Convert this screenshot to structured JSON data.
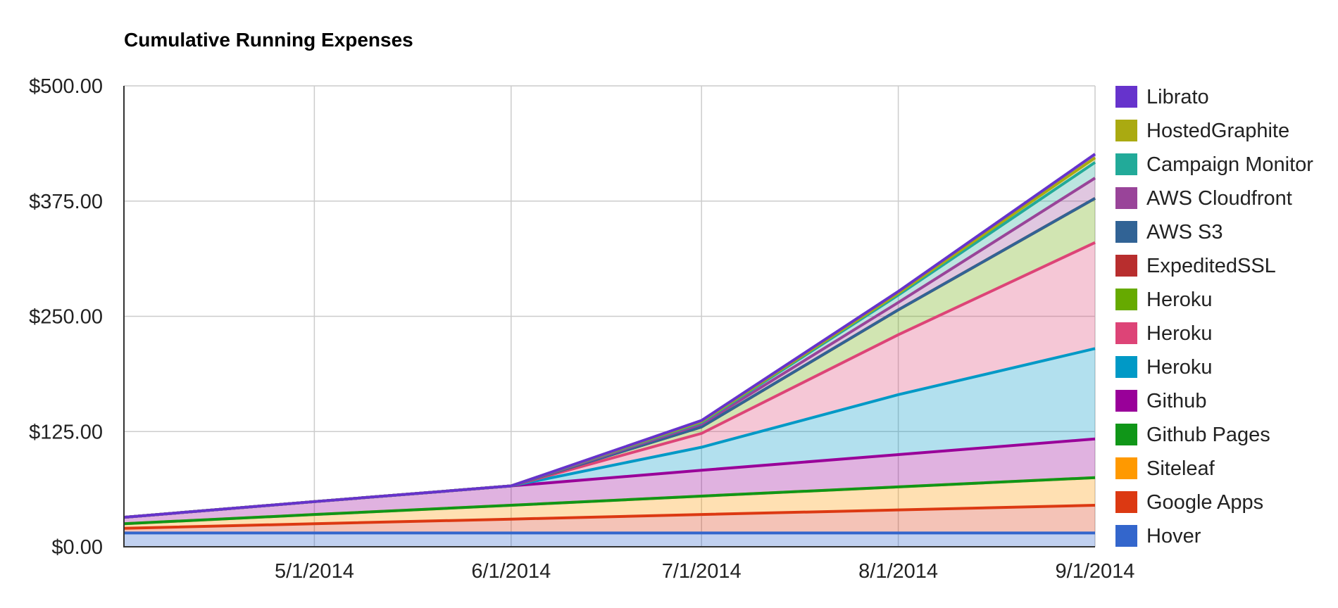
{
  "chart_data": {
    "type": "area",
    "stacked": true,
    "title": "Cumulative Running Expenses",
    "xlabel": "",
    "ylabel": "",
    "x": [
      "2014-04-01",
      "2014-05-01",
      "2014-06-01",
      "2014-07-01",
      "2014-08-01",
      "2014-09-01"
    ],
    "x_tick_labels": [
      "5/1/2014",
      "6/1/2014",
      "7/1/2014",
      "8/1/2014",
      "9/1/2014"
    ],
    "x_tick_values": [
      "2014-05-01",
      "2014-06-01",
      "2014-07-01",
      "2014-08-01",
      "2014-09-01"
    ],
    "ylim": [
      0,
      500
    ],
    "y_tick_values": [
      0,
      125,
      250,
      375,
      500
    ],
    "y_tick_labels": [
      "$0.00",
      "$125.00",
      "$250.00",
      "$375.00",
      "$500.00"
    ],
    "grid": true,
    "legend_position": "right",
    "series": [
      {
        "name": "Hover",
        "color": "#3366cc",
        "values": [
          15,
          15,
          15,
          15,
          15,
          15
        ]
      },
      {
        "name": "Google Apps",
        "color": "#dc3912",
        "values": [
          5,
          10,
          15,
          20,
          25,
          30
        ]
      },
      {
        "name": "Siteleaf",
        "color": "#ff9900",
        "values": [
          5,
          10,
          15,
          20,
          25,
          30
        ]
      },
      {
        "name": "Github Pages",
        "color": "#109618",
        "values": [
          0,
          0,
          0,
          0,
          0,
          0
        ]
      },
      {
        "name": "Github",
        "color": "#990099",
        "values": [
          7,
          14,
          21,
          28,
          35,
          42
        ]
      },
      {
        "name": "Heroku",
        "color": "#0099c6",
        "values": [
          0,
          0,
          0,
          25,
          65,
          98
        ]
      },
      {
        "name": "Heroku",
        "color": "#dd4477",
        "values": [
          0,
          0,
          0,
          15,
          65,
          115
        ]
      },
      {
        "name": "Heroku",
        "color": "#66aa00",
        "values": [
          0,
          0,
          0,
          7,
          27,
          48
        ]
      },
      {
        "name": "ExpeditedSSL",
        "color": "#b82e2e",
        "values": [
          0,
          0,
          0,
          0,
          0,
          0
        ]
      },
      {
        "name": "AWS S3",
        "color": "#316395",
        "values": [
          0,
          0,
          0,
          0,
          0,
          0
        ]
      },
      {
        "name": "AWS Cloudfront",
        "color": "#994499",
        "values": [
          0,
          0,
          0,
          3,
          8,
          22
        ]
      },
      {
        "name": "Campaign Monitor",
        "color": "#22aa99",
        "values": [
          0,
          0,
          0,
          2,
          8,
          17
        ]
      },
      {
        "name": "HostedGraphite",
        "color": "#aaaa11",
        "values": [
          0,
          0,
          0,
          1,
          2,
          5
        ]
      },
      {
        "name": "Librato",
        "color": "#6633cc",
        "values": [
          0,
          0,
          0,
          1,
          2,
          4
        ]
      }
    ]
  }
}
